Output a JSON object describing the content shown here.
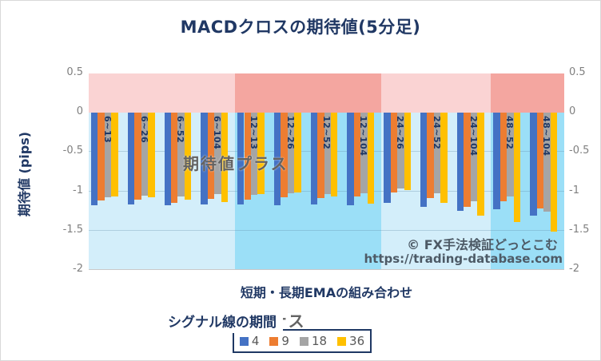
{
  "header": {
    "title": "MACDクロスの期待値(5分足)"
  },
  "watermark": {
    "line1": "© FX手法検証どっとこむ",
    "line2": "https://trading-database.com"
  },
  "chart_data": {
    "type": "bar",
    "title": "MACDクロスの期待値(5分足)",
    "xlabel": "短期・長期EMAの組み合わせ",
    "ylabel": "期待値 (pips)",
    "ylim": [
      -2,
      0.5
    ],
    "yticks": [
      "0.5",
      "0",
      "-0.5",
      "-1",
      "-1.5",
      "-2"
    ],
    "ytick_values": [
      0.5,
      0,
      -0.5,
      -1,
      -1.5,
      -2
    ],
    "grid": true,
    "legend_position": "bottom",
    "legend_title": "シグナル線の期間",
    "categories": [
      "6~13",
      "6~26",
      "6~52",
      "6~104",
      "12~13",
      "12~26",
      "12~52",
      "12~104",
      "24~26",
      "24~52",
      "24~104",
      "48~52",
      "48~104"
    ],
    "series": [
      {
        "name": "4",
        "color": "#4472C4",
        "values": [
          -1.18,
          -1.17,
          -1.18,
          -1.17,
          -1.17,
          -1.18,
          -1.17,
          -1.18,
          -1.15,
          -1.2,
          -1.25,
          -1.23,
          -1.31
        ]
      },
      {
        "name": "9",
        "color": "#ED7D31",
        "values": [
          -1.12,
          -1.11,
          -1.15,
          -1.1,
          -1.11,
          -1.08,
          -1.09,
          -1.07,
          -1.01,
          -1.09,
          -1.2,
          -1.13,
          -1.22
        ]
      },
      {
        "name": "18",
        "color": "#A5A5A5",
        "values": [
          -1.08,
          -1.06,
          -1.07,
          -1.03,
          -1.04,
          -1.02,
          -1.03,
          -1.02,
          -0.96,
          -1.02,
          -1.13,
          -1.07,
          -1.26
        ]
      },
      {
        "name": "36",
        "color": "#FFC000",
        "values": [
          -1.07,
          -1.08,
          -1.11,
          -1.14,
          -1.03,
          -1.01,
          -1.07,
          -1.16,
          -0.98,
          -1.15,
          -1.31,
          -1.39,
          -1.51
        ]
      }
    ],
    "zone_labels": {
      "positive": "期待値プラス",
      "negative": "期待値マイナス"
    },
    "zone_colors": {
      "positive_light": "#FAD3D3",
      "positive_dark": "#F4A6A0",
      "negative_light": "#D3EEFA",
      "negative_dark": "#9BDFF7"
    },
    "band_group_counts": [
      4,
      4,
      3,
      2
    ]
  },
  "colors": {
    "title_navy": "#203864",
    "tick_gray": "#7F7F7F",
    "zone_text_gray": "#636363",
    "watermark_slate": "#4D5A66"
  }
}
